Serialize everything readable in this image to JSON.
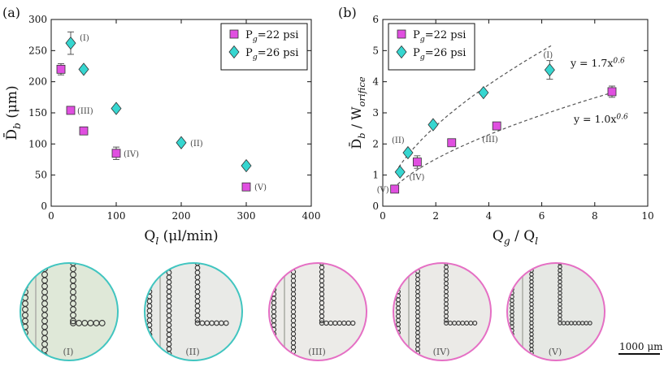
{
  "panel_a_label": "(a)",
  "panel_b_label": "(b)",
  "colors": {
    "magenta": "#e04fe0",
    "cyan": "#36d6d0",
    "magenta_stroke": "#222222",
    "cyan_stroke": "#222222",
    "ring_cyan": "#41c5c0",
    "ring_pink": "#e56fc4"
  },
  "chart_data": [
    {
      "type": "scatter",
      "panel": "(a)",
      "xlabel": "Q_l (μl/min)",
      "ylabel": "D̄_b (μm)",
      "xlim": [
        0,
        400
      ],
      "ylim": [
        0,
        300
      ],
      "xticks": [
        0,
        100,
        200,
        300,
        400
      ],
      "yticks": [
        0,
        50,
        100,
        150,
        200,
        250,
        300
      ],
      "legend_position": "top-right",
      "series": [
        {
          "name": "P_g=22 psi",
          "marker": "square",
          "color": "#e04fe0",
          "points": [
            {
              "x": 15,
              "y": 220,
              "err": 9,
              "label": ""
            },
            {
              "x": 30,
              "y": 154,
              "err": 0,
              "label": "(III)"
            },
            {
              "x": 50,
              "y": 121,
              "err": 0,
              "label": ""
            },
            {
              "x": 100,
              "y": 85,
              "err": 10,
              "label": "(IV)"
            },
            {
              "x": 300,
              "y": 31,
              "err": 0,
              "label": "(V)"
            }
          ]
        },
        {
          "name": "P_g=26 psi",
          "marker": "diamond",
          "color": "#36d6d0",
          "points": [
            {
              "x": 30,
              "y": 262,
              "err": 18,
              "label": "(I)"
            },
            {
              "x": 50,
              "y": 220,
              "err": 0,
              "label": ""
            },
            {
              "x": 100,
              "y": 157,
              "err": 0,
              "label": ""
            },
            {
              "x": 200,
              "y": 102,
              "err": 0,
              "label": "(II)"
            },
            {
              "x": 300,
              "y": 65,
              "err": 0,
              "label": ""
            }
          ]
        }
      ]
    },
    {
      "type": "scatter",
      "panel": "(b)",
      "xlabel": "Q_g / Q_l",
      "ylabel": "D̄_b / W_orifice",
      "xlim": [
        0,
        10
      ],
      "ylim": [
        0,
        6
      ],
      "xticks": [
        0,
        2,
        4,
        6,
        8,
        10
      ],
      "yticks": [
        0,
        1,
        2,
        3,
        4,
        5,
        6
      ],
      "legend_position": "top-left",
      "series": [
        {
          "name": "P_g=22 psi",
          "marker": "square",
          "color": "#e04fe0",
          "points": [
            {
              "x": 0.45,
              "y": 0.55,
              "err": 0,
              "label": "(V)"
            },
            {
              "x": 1.3,
              "y": 1.42,
              "err": 0.2,
              "label": "(IV)"
            },
            {
              "x": 2.6,
              "y": 2.04,
              "err": 0,
              "label": ""
            },
            {
              "x": 4.3,
              "y": 2.58,
              "err": 0,
              "label": "(III)"
            },
            {
              "x": 8.65,
              "y": 3.68,
              "err": 0.18,
              "label": ""
            }
          ]
        },
        {
          "name": "P_g=26 psi",
          "marker": "diamond",
          "color": "#36d6d0",
          "points": [
            {
              "x": 0.65,
              "y": 1.1,
              "err": 0,
              "label": ""
            },
            {
              "x": 0.95,
              "y": 1.72,
              "err": 0,
              "label": "(II)"
            },
            {
              "x": 1.9,
              "y": 2.62,
              "err": 0,
              "label": ""
            },
            {
              "x": 3.8,
              "y": 3.65,
              "err": 0,
              "label": ""
            },
            {
              "x": 6.3,
              "y": 4.38,
              "err": 0.3,
              "label": "(I)"
            }
          ]
        }
      ],
      "fits": [
        {
          "equation": "y = 1.7x^0.6",
          "a": 1.7,
          "b": 0.6,
          "x_from": 0.6,
          "x_to": 6.35
        },
        {
          "equation": "y = 1.0x^0.6",
          "a": 1.0,
          "b": 0.6,
          "x_from": 0.4,
          "x_to": 8.7
        }
      ]
    }
  ],
  "micrographs": [
    {
      "label": "(I)",
      "ring": "cyan"
    },
    {
      "label": "(II)",
      "ring": "cyan"
    },
    {
      "label": "(III)",
      "ring": "pink"
    },
    {
      "label": "(IV)",
      "ring": "pink"
    },
    {
      "label": "(V)",
      "ring": "pink"
    }
  ],
  "scale_bar_label": "1000 μm"
}
